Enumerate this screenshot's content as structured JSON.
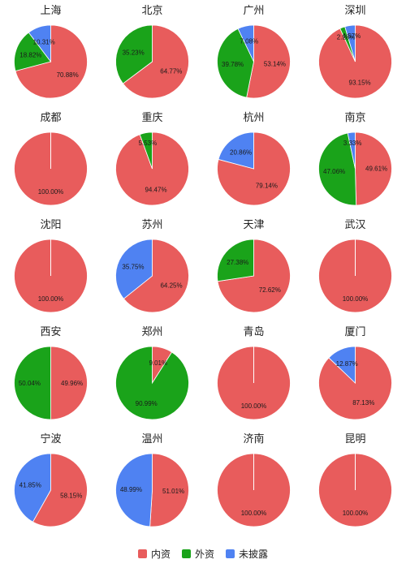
{
  "chart_data": {
    "type": "pie",
    "series_names": [
      "内资",
      "外资",
      "未披露"
    ],
    "colors": [
      "#e85c5c",
      "#1aa31a",
      "#4f82f2"
    ],
    "legend_position": "bottom",
    "charts": [
      {
        "title": "上海",
        "values": [
          70.88,
          18.82,
          10.31
        ],
        "labels": [
          "70.88%",
          "18.82%",
          "10.31%"
        ]
      },
      {
        "title": "北京",
        "values": [
          64.77,
          35.23,
          0
        ],
        "labels": [
          "64.77%",
          "35.23%",
          ""
        ]
      },
      {
        "title": "广州",
        "values": [
          53.14,
          39.78,
          7.08
        ],
        "labels": [
          "53.14%",
          "39.78%",
          "7.08%"
        ]
      },
      {
        "title": "深圳",
        "values": [
          93.15,
          2.28,
          4.57
        ],
        "labels": [
          "93.15%",
          "2.28%",
          "4.57%"
        ]
      },
      {
        "title": "成都",
        "values": [
          100,
          0,
          0
        ],
        "labels": [
          "100.00%",
          "",
          ""
        ]
      },
      {
        "title": "重庆",
        "values": [
          94.47,
          5.53,
          0
        ],
        "labels": [
          "94.47%",
          "5.53%",
          ""
        ]
      },
      {
        "title": "杭州",
        "values": [
          79.14,
          0,
          20.86
        ],
        "labels": [
          "79.14%",
          "",
          "20.86%"
        ]
      },
      {
        "title": "南京",
        "values": [
          49.61,
          47.06,
          3.33
        ],
        "labels": [
          "49.61%",
          "47.06%",
          "3.33%"
        ]
      },
      {
        "title": "沈阳",
        "values": [
          100,
          0,
          0
        ],
        "labels": [
          "100.00%",
          "",
          ""
        ]
      },
      {
        "title": "苏州",
        "values": [
          64.25,
          0,
          35.75
        ],
        "labels": [
          "64.25%",
          "",
          "35.75%"
        ]
      },
      {
        "title": "天津",
        "values": [
          72.62,
          27.38,
          0
        ],
        "labels": [
          "72.62%",
          "27.38%",
          ""
        ]
      },
      {
        "title": "武汉",
        "values": [
          100,
          0,
          0
        ],
        "labels": [
          "100.00%",
          "",
          ""
        ]
      },
      {
        "title": "西安",
        "values": [
          49.96,
          50.04,
          0
        ],
        "labels": [
          "49.96%",
          "50.04%",
          ""
        ]
      },
      {
        "title": "郑州",
        "values": [
          9.01,
          90.99,
          0
        ],
        "labels": [
          "9.01%",
          "90.99%",
          ""
        ]
      },
      {
        "title": "青岛",
        "values": [
          100,
          0,
          0
        ],
        "labels": [
          "100.00%",
          "",
          ""
        ]
      },
      {
        "title": "厦门",
        "values": [
          87.13,
          0,
          12.87
        ],
        "labels": [
          "87.13%",
          "",
          "12.87%"
        ]
      },
      {
        "title": "宁波",
        "values": [
          58.15,
          0,
          41.85
        ],
        "labels": [
          "58.15%",
          "",
          "41.85%"
        ]
      },
      {
        "title": "温州",
        "values": [
          51.01,
          0,
          48.99
        ],
        "labels": [
          "51.01%",
          "",
          "48.99%"
        ]
      },
      {
        "title": "济南",
        "values": [
          100,
          0,
          0
        ],
        "labels": [
          "100.00%",
          "",
          ""
        ]
      },
      {
        "title": "昆明",
        "values": [
          100,
          0,
          0
        ],
        "labels": [
          "100.00%",
          "",
          ""
        ]
      }
    ]
  }
}
